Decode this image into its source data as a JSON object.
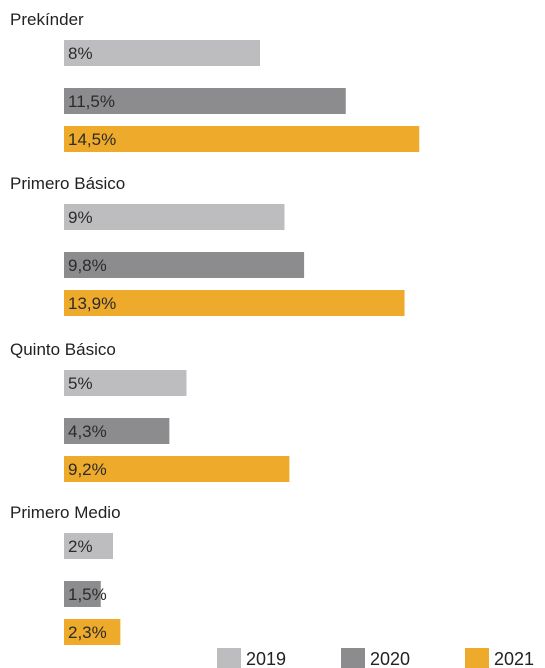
{
  "chart_data": {
    "type": "bar",
    "orientation": "horizontal",
    "categories": [
      "Prekínder",
      "Primero Básico",
      "Quinto Básico",
      "Primero Medio"
    ],
    "series": [
      {
        "name": "2019",
        "values": [
          8,
          9,
          5,
          2
        ],
        "labels": [
          "8%",
          "9%",
          "5%",
          "2%"
        ]
      },
      {
        "name": "2020",
        "values": [
          11.5,
          9.8,
          4.3,
          1.5
        ],
        "labels": [
          "11,5%",
          "9,8%",
          "4,3%",
          "1,5%"
        ]
      },
      {
        "name": "2021",
        "values": [
          14.5,
          13.9,
          9.2,
          2.3
        ],
        "labels": [
          "14,5%",
          "13,9%",
          "9,2%",
          "2,3%"
        ]
      }
    ],
    "colors": {
      "2019": "#bdbdc0",
      "2020": "#8c8c8e",
      "2021": "#eeaa2a"
    },
    "unit": "%",
    "legend": "bottom-right",
    "grid": false
  }
}
